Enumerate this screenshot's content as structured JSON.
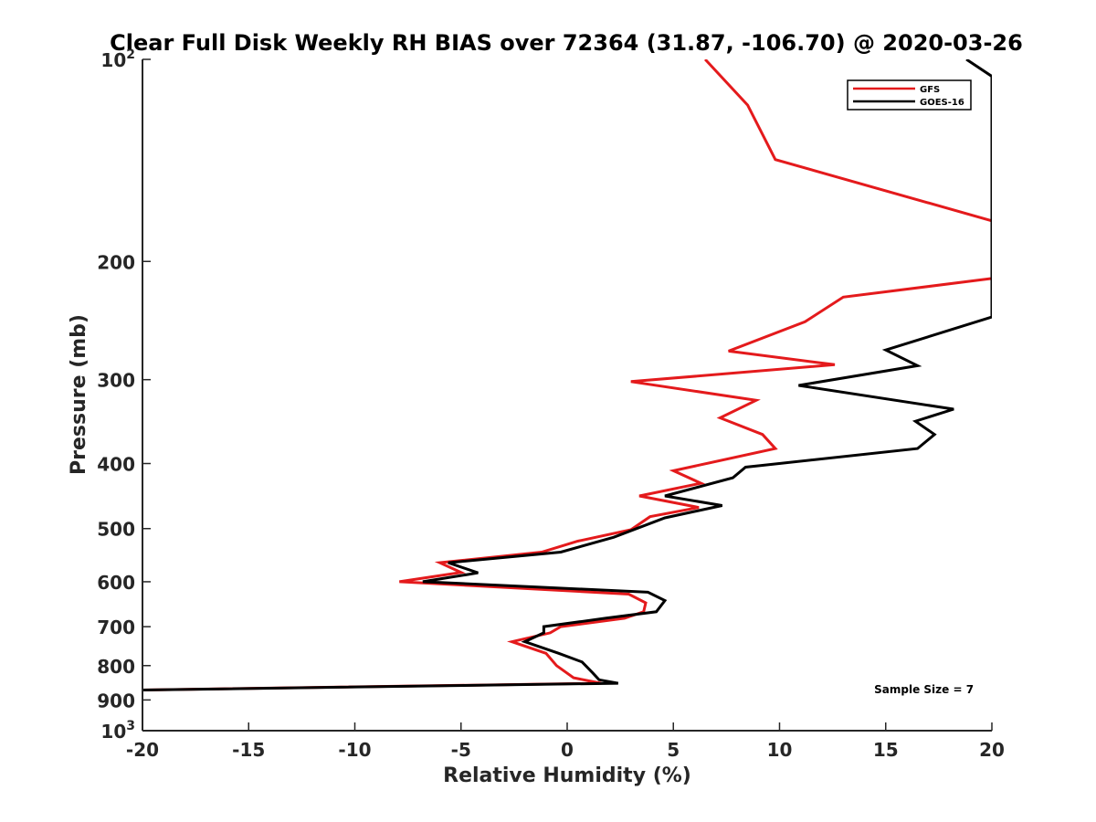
{
  "chart_data": {
    "type": "line",
    "title": "Clear Full Disk Weekly RH BIAS over 72364 (31.87, -106.70) @ 2020-03-26",
    "xlabel": "Relative Humidity (%)",
    "ylabel": "Pressure (mb)",
    "xlim": [
      -20,
      20
    ],
    "ylim": [
      100,
      1000
    ],
    "y_scale": "log",
    "y_reversed": true,
    "grid": false,
    "legend_position": "top-right",
    "x_ticks": [
      -20,
      -15,
      -10,
      -5,
      0,
      5,
      10,
      15,
      20
    ],
    "x_tick_labels": [
      "-20",
      "-15",
      "-10",
      "-5",
      "0",
      "5",
      "10",
      "15",
      "20"
    ],
    "y_ticks": [
      100,
      200,
      300,
      400,
      500,
      600,
      700,
      800,
      900,
      1000
    ],
    "y_tick_labels": [
      {
        "base": "10",
        "exp": "2"
      },
      {
        "base": "200",
        "exp": ""
      },
      {
        "base": "300",
        "exp": ""
      },
      {
        "base": "400",
        "exp": ""
      },
      {
        "base": "500",
        "exp": ""
      },
      {
        "base": "600",
        "exp": ""
      },
      {
        "base": "700",
        "exp": ""
      },
      {
        "base": "800",
        "exp": ""
      },
      {
        "base": "900",
        "exp": ""
      },
      {
        "base": "10",
        "exp": "3"
      }
    ],
    "series": [
      {
        "name": "GFS",
        "color": "#e41a1c",
        "points": [
          [
            6.5,
            100
          ],
          [
            8.5,
            117
          ],
          [
            9.8,
            141
          ],
          [
            20,
            174
          ],
          [
            20,
            212
          ],
          [
            13.0,
            226
          ],
          [
            11.2,
            246
          ],
          [
            7.6,
            272
          ],
          [
            12.6,
            285
          ],
          [
            3.0,
            302
          ],
          [
            8.9,
            322
          ],
          [
            7.2,
            342
          ],
          [
            9.2,
            362
          ],
          [
            9.8,
            380
          ],
          [
            5.0,
            410
          ],
          [
            6.3,
            428
          ],
          [
            3.4,
            447
          ],
          [
            6.2,
            465
          ],
          [
            3.9,
            480
          ],
          [
            3.0,
            502
          ],
          [
            0.5,
            522
          ],
          [
            -1.2,
            542
          ],
          [
            -6.0,
            562
          ],
          [
            -5.0,
            581
          ],
          [
            -7.9,
            600
          ],
          [
            2.9,
            626
          ],
          [
            3.7,
            645
          ],
          [
            3.6,
            665
          ],
          [
            2.7,
            680
          ],
          [
            -0.3,
            700
          ],
          [
            -0.8,
            715
          ],
          [
            -2.6,
            737
          ],
          [
            -1.0,
            767
          ],
          [
            -0.5,
            800
          ],
          [
            0.3,
            834
          ],
          [
            1.6,
            850
          ],
          [
            -20,
            870
          ]
        ]
      },
      {
        "name": "GOES-16",
        "color": "#000000",
        "points": [
          [
            18.8,
            100
          ],
          [
            20,
            106
          ],
          [
            20,
            242
          ],
          [
            15.0,
            271
          ],
          [
            16.5,
            286
          ],
          [
            10.9,
            306
          ],
          [
            18.2,
            332
          ],
          [
            16.4,
            346
          ],
          [
            17.3,
            362
          ],
          [
            16.5,
            380
          ],
          [
            8.4,
            405
          ],
          [
            7.8,
            420
          ],
          [
            4.6,
            447
          ],
          [
            7.3,
            462
          ],
          [
            4.6,
            482
          ],
          [
            2.2,
            515
          ],
          [
            -0.3,
            542
          ],
          [
            -5.6,
            562
          ],
          [
            -4.2,
            582
          ],
          [
            -6.8,
            600
          ],
          [
            3.8,
            622
          ],
          [
            4.6,
            640
          ],
          [
            4.2,
            665
          ],
          [
            1.8,
            680
          ],
          [
            -1.1,
            700
          ],
          [
            -1.1,
            715
          ],
          [
            -2.0,
            737
          ],
          [
            -0.4,
            767
          ],
          [
            0.7,
            790
          ],
          [
            1.2,
            820
          ],
          [
            1.5,
            840
          ],
          [
            2.4,
            850
          ],
          [
            -20,
            870
          ]
        ]
      }
    ],
    "annotations": [
      {
        "text": "Sample Size = 7",
        "x": 16.8,
        "y": 880
      }
    ]
  }
}
